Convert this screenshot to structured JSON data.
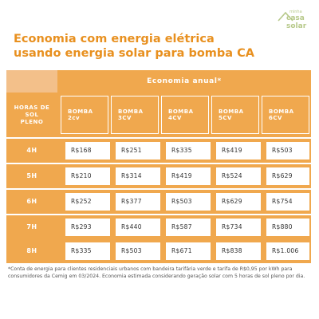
{
  "logo": {
    "line1": "minha",
    "line2": "casa",
    "line3": "solar"
  },
  "title": {
    "line1": "Economia com energia elétrica",
    "line2": "usando energia solar para bomba CA"
  },
  "table": {
    "annual_header": "Economia anual*",
    "hours_header": [
      "HORAS DE",
      "SOL",
      "PLENO"
    ],
    "pumps": [
      "BOMBA 2cv",
      "BOMBA 3CV",
      "BOMBA 4CV",
      "BOMBA 5CV",
      "BOMBA 6CV"
    ],
    "rows": [
      {
        "hours": "4H",
        "values": [
          "R$168",
          "R$251",
          "R$335",
          "R$419",
          "R$503"
        ]
      },
      {
        "hours": "5H",
        "values": [
          "R$210",
          "R$314",
          "R$419",
          "R$524",
          "R$629"
        ]
      },
      {
        "hours": "6H",
        "values": [
          "R$252",
          "R$377",
          "R$503",
          "R$629",
          "R$754"
        ]
      },
      {
        "hours": "7H",
        "values": [
          "R$293",
          "R$440",
          "R$587",
          "R$734",
          "R$880"
        ]
      },
      {
        "hours": "8H",
        "values": [
          "R$335",
          "R$503",
          "R$671",
          "R$838",
          "R$1.006"
        ]
      }
    ]
  },
  "footnote": "*Conta de energia para clientes residenciais urbanos com bandeira tarifária verde e tarifa de R$0,95 por kWh para consumidores da Cemig em 03/2024. Economia estimada considerando geração solar com 5 horas de sol pleno por dia.",
  "colors": {
    "accent": "#e8901f",
    "table_orange": "#f0a84e",
    "corner": "#f3c08a",
    "logo": "#b7c98a"
  }
}
